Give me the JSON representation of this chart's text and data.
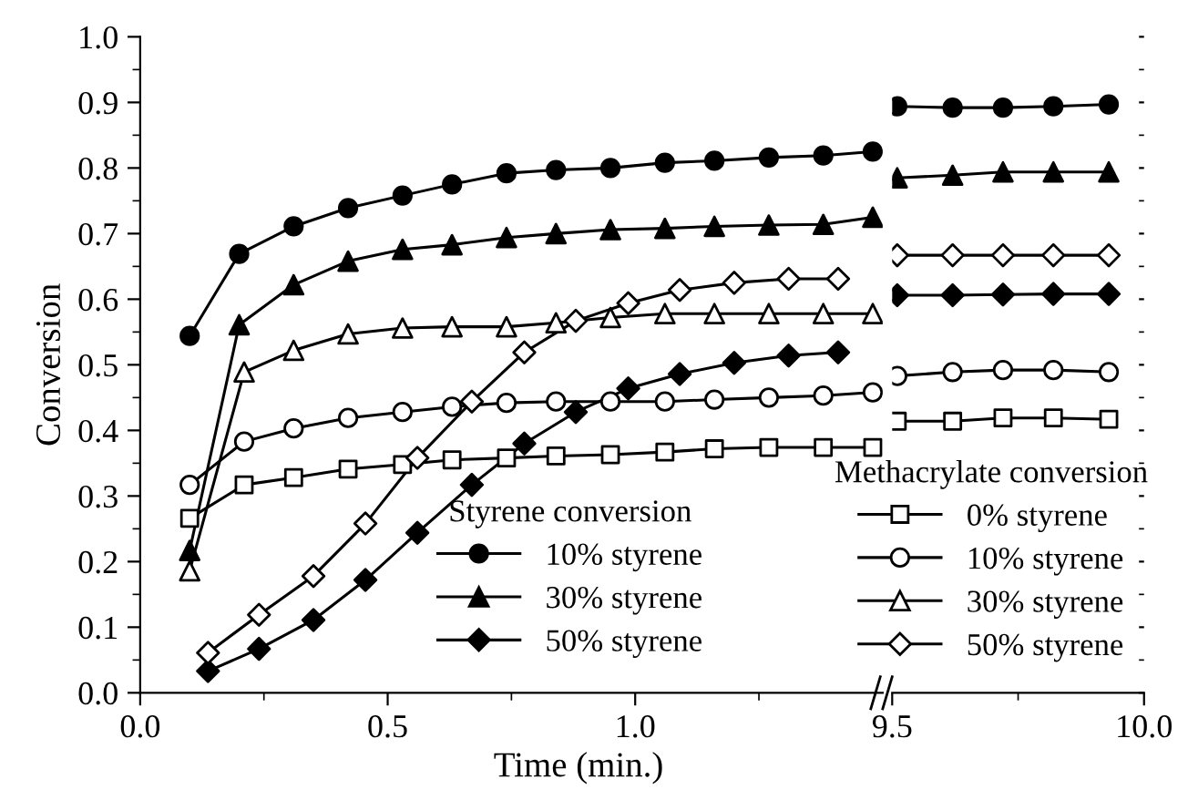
{
  "chart_data": [
    {
      "type": "line",
      "ylabel": "Conversion",
      "xlabel": "Time (min.)",
      "annotations": [
        "Styrene conversion",
        "Methacrylate conversion"
      ],
      "legend": "bottom right",
      "xlim": [
        0,
        1.5
      ],
      "ylim": [
        0,
        1
      ],
      "xticks": [
        {
          "value": 0,
          "label": "0.0"
        },
        {
          "value": 0.25,
          "label": null
        },
        0.5,
        {
          "value": 0.75,
          "label": null
        },
        {
          "value": 1,
          "label": "1.0"
        },
        {
          "value": 1.25,
          "label": null
        }
      ],
      "yticks": [
        {
          "value": 0,
          "label": "0.0"
        },
        {
          "value": 0.05,
          "label": null
        },
        0.1,
        {
          "value": 0.15,
          "label": null
        },
        0.2,
        {
          "value": 0.25,
          "label": null
        },
        0.3,
        {
          "value": 0.35,
          "label": null
        },
        0.4,
        {
          "value": 0.45,
          "label": null
        },
        0.5,
        {
          "value": 0.55,
          "label": null
        },
        0.6,
        {
          "value": 0.65,
          "label": null
        },
        0.7,
        {
          "value": 0.75,
          "label": null
        },
        0.8,
        {
          "value": 0.85,
          "label": null
        },
        0.9,
        {
          "value": 0.95,
          "label": null
        },
        {
          "value": 1,
          "label": "1.0"
        }
      ],
      "series": [
        {
          "name": "10% styrene",
          "color": "#000000",
          "marker": "circle",
          "x": [
            0.1,
            0.2,
            0.31,
            0.42,
            0.53,
            0.63,
            0.74,
            0.84,
            0.95,
            1.06,
            1.16,
            1.27,
            1.38,
            1.48
          ],
          "values": [
            0.544,
            0.669,
            0.711,
            0.739,
            0.758,
            0.775,
            0.792,
            0.797,
            0.8,
            0.808,
            0.811,
            0.816,
            0.819,
            0.825
          ]
        },
        {
          "name": "30% styrene",
          "color": "#000000",
          "marker": "triangle",
          "x": [
            0.1,
            0.2,
            0.31,
            0.42,
            0.53,
            0.63,
            0.74,
            0.84,
            0.95,
            1.06,
            1.16,
            1.27,
            1.38,
            1.48
          ],
          "values": [
            0.217,
            0.561,
            0.622,
            0.658,
            0.676,
            0.683,
            0.694,
            0.7,
            0.706,
            0.708,
            0.711,
            0.713,
            0.714,
            0.725
          ]
        },
        {
          "name": "50% styrene",
          "color": "#000000",
          "marker": "diamond",
          "x": [
            0.137,
            0.24,
            0.35,
            0.455,
            0.56,
            0.67,
            0.776,
            0.88,
            0.986,
            1.09,
            1.2,
            1.31,
            1.41
          ],
          "values": [
            0.033,
            0.067,
            0.111,
            0.172,
            0.244,
            0.317,
            0.38,
            0.428,
            0.464,
            0.486,
            0.503,
            0.514,
            0.519
          ]
        },
        {
          "name": "0% styrene",
          "color": "#000000",
          "colors": [
            "#ffffff",
            "#ffffff",
            "#ffffff",
            "#ffffff",
            "#ffffff",
            "#ffffff",
            "#ffffff",
            "#ffffff",
            "#ffffff",
            "#ffffff",
            "#ffffff",
            "#ffffff",
            "#ffffff",
            "#ffffff"
          ],
          "marker": "square",
          "x": [
            0.1,
            0.21,
            0.31,
            0.42,
            0.53,
            0.63,
            0.74,
            0.84,
            0.95,
            1.06,
            1.16,
            1.27,
            1.38,
            1.48
          ],
          "values": [
            0.266,
            0.317,
            0.328,
            0.341,
            0.348,
            0.355,
            0.358,
            0.361,
            0.363,
            0.367,
            0.372,
            0.374,
            0.374,
            0.374
          ]
        },
        {
          "name": "10% styrene",
          "color": "#000000",
          "colors": [
            "#ffffff",
            "#ffffff",
            "#ffffff",
            "#ffffff",
            "#ffffff",
            "#ffffff",
            "#ffffff",
            "#ffffff",
            "#ffffff",
            "#ffffff",
            "#ffffff",
            "#ffffff",
            "#ffffff",
            "#ffffff"
          ],
          "marker": "circle",
          "x": [
            0.1,
            0.21,
            0.31,
            0.42,
            0.53,
            0.63,
            0.74,
            0.84,
            0.95,
            1.06,
            1.16,
            1.27,
            1.38,
            1.48
          ],
          "values": [
            0.317,
            0.383,
            0.403,
            0.419,
            0.428,
            0.436,
            0.442,
            0.444,
            0.444,
            0.444,
            0.447,
            0.45,
            0.453,
            0.458
          ]
        },
        {
          "name": "30% styrene",
          "color": "#000000",
          "colors": [
            "#ffffff",
            "#ffffff",
            "#ffffff",
            "#ffffff",
            "#ffffff",
            "#ffffff",
            "#ffffff",
            "#ffffff",
            "#ffffff",
            "#ffffff",
            "#ffffff",
            "#ffffff",
            "#ffffff",
            "#ffffff"
          ],
          "marker": "triangle",
          "x": [
            0.1,
            0.21,
            0.31,
            0.42,
            0.53,
            0.63,
            0.74,
            0.84,
            0.95,
            1.06,
            1.16,
            1.27,
            1.38,
            1.48
          ],
          "values": [
            0.186,
            0.489,
            0.522,
            0.547,
            0.556,
            0.558,
            0.558,
            0.564,
            0.572,
            0.578,
            0.578,
            0.578,
            0.578,
            0.578
          ]
        },
        {
          "name": "50% styrene",
          "color": "#000000",
          "colors": [
            "#ffffff",
            "#ffffff",
            "#ffffff",
            "#ffffff",
            "#ffffff",
            "#ffffff",
            "#ffffff",
            "#ffffff",
            "#ffffff",
            "#ffffff",
            "#ffffff",
            "#ffffff",
            "#ffffff"
          ],
          "marker": "diamond",
          "x": [
            0.137,
            0.24,
            0.35,
            0.455,
            0.56,
            0.67,
            0.776,
            0.88,
            0.986,
            1.09,
            1.2,
            1.31,
            1.41
          ],
          "values": [
            0.061,
            0.119,
            0.178,
            0.258,
            0.358,
            0.444,
            0.519,
            0.567,
            0.594,
            0.614,
            0.625,
            0.631,
            0.631
          ]
        }
      ]
    },
    {
      "type": "line",
      "xlim": [
        9.5,
        10
      ],
      "ylim": [
        0,
        1
      ],
      "tick_labels": "x",
      "xticks": [
        9.5,
        {
          "value": 9.75,
          "label": null
        },
        {
          "value": 10,
          "label": "10.0"
        }
      ],
      "series": [
        {
          "color": "#000000",
          "marker": "circle",
          "x": [
            9.51,
            9.62,
            9.72,
            9.82,
            9.93
          ],
          "values": [
            0.894,
            0.892,
            0.892,
            0.894,
            0.897
          ]
        },
        {
          "color": "#000000",
          "marker": "triangle",
          "x": [
            9.51,
            9.62,
            9.72,
            9.82,
            9.93
          ],
          "values": [
            0.785,
            0.789,
            0.794,
            0.794,
            0.794
          ]
        },
        {
          "color": "#000000",
          "marker": "diamond",
          "x": [
            9.51,
            9.62,
            9.72,
            9.82,
            9.93
          ],
          "values": [
            0.606,
            0.606,
            0.607,
            0.608,
            0.608
          ]
        },
        {
          "color": "#000000",
          "colors": [
            "#ffffff",
            "#ffffff",
            "#ffffff",
            "#ffffff",
            "#ffffff"
          ],
          "marker": "square",
          "x": [
            9.51,
            9.62,
            9.72,
            9.82,
            9.93
          ],
          "values": [
            0.414,
            0.414,
            0.419,
            0.419,
            0.417
          ]
        },
        {
          "color": "#000000",
          "colors": [
            "#ffffff",
            "#ffffff",
            "#ffffff",
            "#ffffff",
            "#ffffff"
          ],
          "marker": "circle",
          "x": [
            9.51,
            9.62,
            9.72,
            9.82,
            9.93
          ],
          "values": [
            0.483,
            0.489,
            0.492,
            0.492,
            0.489
          ]
        },
        {
          "color": "#000000",
          "colors": [
            "#ffffff",
            "#ffffff",
            "#ffffff",
            "#ffffff",
            "#ffffff"
          ],
          "marker": "diamond",
          "x": [
            9.51,
            9.62,
            9.72,
            9.82,
            9.93
          ],
          "values": [
            0.667,
            0.667,
            0.667,
            0.667,
            0.667
          ]
        }
      ]
    }
  ]
}
